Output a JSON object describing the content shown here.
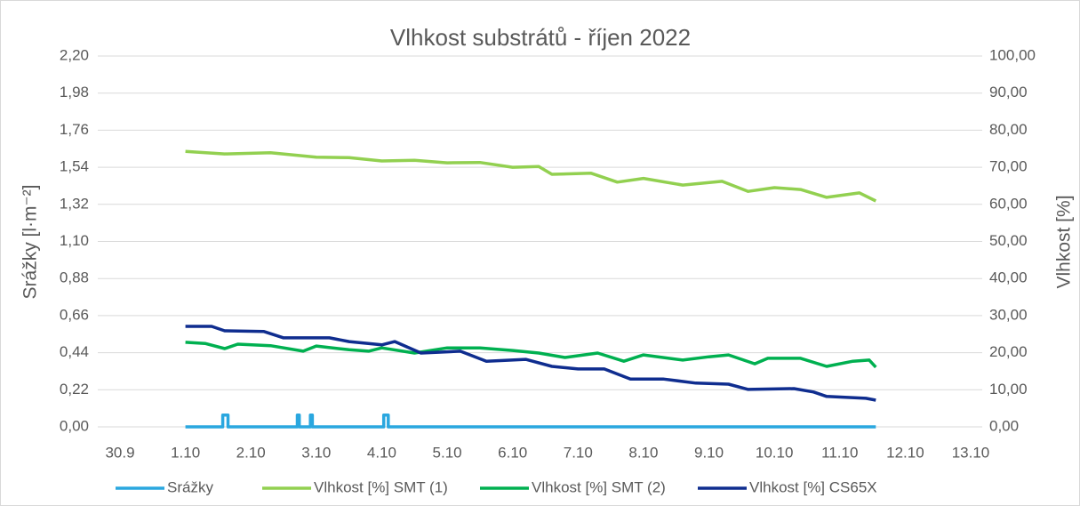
{
  "chart_data": {
    "type": "line",
    "title": "Vlhkost substrátů - říjen 2022",
    "ylabel": "Srážky [l·m⁻²]",
    "y2label": "Vlhkost [%]",
    "xlim": [
      0,
      13
    ],
    "xticks": [
      {
        "value": 0,
        "label": "30.9"
      },
      {
        "value": 1,
        "label": "1.10"
      },
      {
        "value": 2,
        "label": "2.10"
      },
      {
        "value": 3,
        "label": "3.10"
      },
      {
        "value": 4,
        "label": "4.10"
      },
      {
        "value": 5,
        "label": "5.10"
      },
      {
        "value": 6,
        "label": "6.10"
      },
      {
        "value": 7,
        "label": "7.10"
      },
      {
        "value": 8,
        "label": "8.10"
      },
      {
        "value": 9,
        "label": "9.10"
      },
      {
        "value": 10,
        "label": "10.10"
      },
      {
        "value": 11,
        "label": "11.10"
      },
      {
        "value": 12,
        "label": "12.10"
      },
      {
        "value": 13,
        "label": "13.10"
      }
    ],
    "ylim": [
      0,
      2.2
    ],
    "yticks": [
      {
        "value": 0,
        "label": "0,00"
      },
      {
        "value": 0.22,
        "label": "0,22"
      },
      {
        "value": 0.44,
        "label": "0,44"
      },
      {
        "value": 0.66,
        "label": "0,66"
      },
      {
        "value": 0.88,
        "label": "0,88"
      },
      {
        "value": 1.1,
        "label": "1,10"
      },
      {
        "value": 1.32,
        "label": "1,32"
      },
      {
        "value": 1.54,
        "label": "1,54"
      },
      {
        "value": 1.76,
        "label": "1,76"
      },
      {
        "value": 1.98,
        "label": "1,98"
      },
      {
        "value": 2.2,
        "label": "2,20"
      }
    ],
    "y2lim": [
      0,
      100
    ],
    "y2ticks": [
      {
        "value": 0,
        "label": "0,00"
      },
      {
        "value": 10,
        "label": "10,00"
      },
      {
        "value": 20,
        "label": "20,00"
      },
      {
        "value": 30,
        "label": "30,00"
      },
      {
        "value": 40,
        "label": "40,00"
      },
      {
        "value": 50,
        "label": "50,00"
      },
      {
        "value": 60,
        "label": "60,00"
      },
      {
        "value": 70,
        "label": "70,00"
      },
      {
        "value": 80,
        "label": "80,00"
      },
      {
        "value": 90,
        "label": "90,00"
      },
      {
        "value": 100,
        "label": "100,00"
      }
    ],
    "grid": true,
    "legend": "bottom",
    "series": [
      {
        "name": "Srážky",
        "color": "#2aa7df",
        "x": [
          1,
          1.57,
          1.57,
          1.65,
          1.65,
          2.71,
          2.71,
          2.74,
          2.74,
          2.91,
          2.91,
          2.94,
          2.94,
          4.03,
          4.03,
          4.1,
          4.1,
          11.55
        ],
        "values": [
          0,
          0,
          0.07,
          0.07,
          0,
          0,
          0.07,
          0.07,
          0,
          0,
          0.07,
          0.07,
          0,
          0,
          0.07,
          0.07,
          0,
          0
        ]
      },
      {
        "name": "Vlhkost [%] SMT (1)",
        "color": "#92d050",
        "axis": "y2",
        "x": [
          1,
          1.6,
          2.3,
          3.0,
          3.5,
          4.0,
          4.5,
          5.0,
          5.5,
          6.0,
          6.4,
          6.6,
          7.2,
          7.6,
          8.0,
          8.6,
          9.2,
          9.6,
          10.0,
          10.4,
          10.8,
          11.3,
          11.55
        ],
        "values": [
          74.3,
          73.6,
          73.9,
          72.7,
          72.6,
          71.7,
          71.9,
          71.2,
          71.3,
          70.0,
          70.2,
          68.1,
          68.4,
          66.0,
          67.0,
          65.2,
          66.2,
          63.5,
          64.5,
          64.0,
          61.9,
          63.1,
          60.9
        ]
      },
      {
        "name": "Vlhkost [%] SMT (2)",
        "color": "#00b050",
        "axis": "y2",
        "x": [
          1,
          1.3,
          1.6,
          1.8,
          2.3,
          2.8,
          3.0,
          3.5,
          3.8,
          4.0,
          4.5,
          5.0,
          5.5,
          6.0,
          6.4,
          6.8,
          7.3,
          7.7,
          8.0,
          8.6,
          9.0,
          9.3,
          9.7,
          9.9,
          10.4,
          10.8,
          11.2,
          11.45,
          11.55
        ],
        "values": [
          22.8,
          22.5,
          21.1,
          22.3,
          21.9,
          20.4,
          21.8,
          20.8,
          20.4,
          21.3,
          19.9,
          21.3,
          21.3,
          20.6,
          19.9,
          18.7,
          19.9,
          17.7,
          19.4,
          18.0,
          18.9,
          19.4,
          17.0,
          18.5,
          18.5,
          16.3,
          17.7,
          18.0,
          16.1
        ]
      },
      {
        "name": "Vlhkost [%] CS65X",
        "color": "#0f2d8f",
        "axis": "y2",
        "x": [
          1,
          1.4,
          1.6,
          2.2,
          2.5,
          3.2,
          3.5,
          4.0,
          4.2,
          4.6,
          5.2,
          5.6,
          6.2,
          6.6,
          7.0,
          7.4,
          7.8,
          8.3,
          8.8,
          9.3,
          9.6,
          10.3,
          10.6,
          10.8,
          11.4,
          11.55
        ],
        "values": [
          27.1,
          27.1,
          25.9,
          25.7,
          24.0,
          24.0,
          23.0,
          22.1,
          23.0,
          19.9,
          20.4,
          17.7,
          18.2,
          16.3,
          15.6,
          15.6,
          12.9,
          12.9,
          11.8,
          11.5,
          10.1,
          10.3,
          9.4,
          8.2,
          7.7,
          7.2
        ]
      }
    ]
  }
}
